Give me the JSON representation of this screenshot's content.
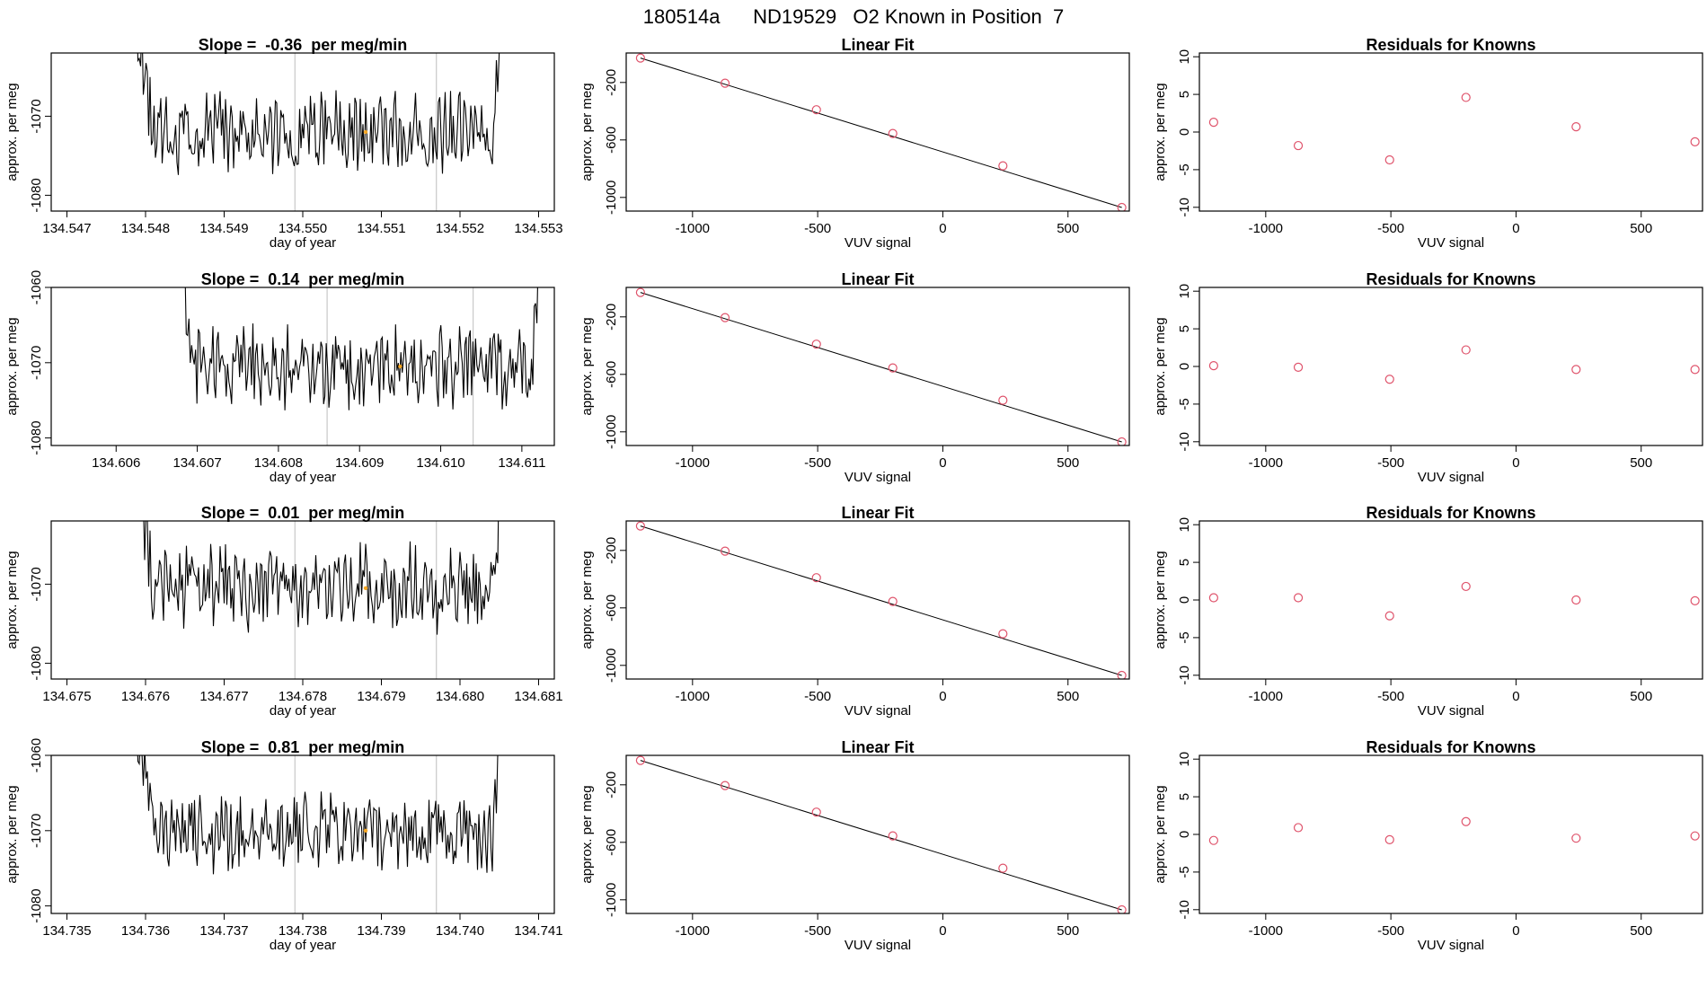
{
  "page_title": "180514a      ND19529   O2 Known in Position  7",
  "colors": {
    "trace": "#000000",
    "known_marker": "#DF536B",
    "highlight": "#F5A623",
    "grid_line": "#BEBEBE",
    "fit_line": "#000000"
  },
  "chart_data": [
    {
      "type": "line",
      "panel": "time-series",
      "row": 1,
      "title": "Slope =  -0.36  per meg/min",
      "xlabel": "day of year",
      "ylabel": "approx. per meg",
      "xlim": [
        134.5468,
        134.5532
      ],
      "ylim": [
        -1082,
        -1062
      ],
      "xticks": [
        134.547,
        134.548,
        134.549,
        134.55,
        134.551,
        134.552,
        134.553
      ],
      "xtick_labels": [
        "134.547",
        "134.548",
        "134.549",
        "134.550",
        "134.551",
        "134.552",
        "134.553"
      ],
      "yticks": [
        -1080,
        -1070
      ],
      "ytick_labels": [
        "-1080",
        "-1070"
      ],
      "x_start": 134.5478,
      "x_end": 134.5526,
      "vlines": [
        134.5499,
        134.5517
      ],
      "highlight": [
        134.5508,
        -1072
      ],
      "seed": 11
    },
    {
      "type": "line",
      "panel": "time-series",
      "row": 2,
      "title": "Slope =  0.14  per meg/min",
      "xlabel": "day of year",
      "ylabel": "approx. per meg",
      "xlim": [
        134.6052,
        134.6114
      ],
      "ylim": [
        -1081,
        -1060
      ],
      "xticks": [
        134.606,
        134.607,
        134.608,
        134.609,
        134.61,
        134.611
      ],
      "xtick_labels": [
        "134.606",
        "134.607",
        "134.608",
        "134.609",
        "134.610",
        "134.611"
      ],
      "yticks": [
        -1080,
        -1070,
        -1060
      ],
      "ytick_labels": [
        "-1080",
        "-1070",
        "-1060"
      ],
      "x_start": 134.6067,
      "x_end": 134.6113,
      "vlines": [
        134.6086,
        134.6104
      ],
      "highlight": [
        134.6095,
        -1070.5
      ],
      "seed": 23
    },
    {
      "type": "line",
      "panel": "time-series",
      "row": 3,
      "title": "Slope =  0.01  per meg/min",
      "xlabel": "day of year",
      "ylabel": "approx. per meg",
      "xlim": [
        134.6748,
        134.6812
      ],
      "ylim": [
        -1082,
        -1062
      ],
      "xticks": [
        134.675,
        134.676,
        134.677,
        134.678,
        134.679,
        134.68,
        134.681
      ],
      "xtick_labels": [
        "134.675",
        "134.676",
        "134.677",
        "134.678",
        "134.679",
        "134.680",
        "134.681"
      ],
      "yticks": [
        -1080,
        -1070
      ],
      "ytick_labels": [
        "-1080",
        "-1070"
      ],
      "x_start": 134.6758,
      "x_end": 134.6806,
      "vlines": [
        134.6779,
        134.6797
      ],
      "highlight": [
        134.6788,
        -1070.5
      ],
      "seed": 37
    },
    {
      "type": "line",
      "panel": "time-series",
      "row": 4,
      "title": "Slope =  0.81  per meg/min",
      "xlabel": "day of year",
      "ylabel": "approx. per meg",
      "xlim": [
        134.7348,
        134.7412
      ],
      "ylim": [
        -1081,
        -1060
      ],
      "xticks": [
        134.735,
        134.736,
        134.737,
        134.738,
        134.739,
        134.74,
        134.741
      ],
      "xtick_labels": [
        "134.735",
        "134.736",
        "134.737",
        "134.738",
        "134.739",
        "134.740",
        "134.741"
      ],
      "yticks": [
        -1080,
        -1070,
        -1060
      ],
      "ytick_labels": [
        "-1080",
        "-1070",
        "-1060"
      ],
      "x_start": 134.7358,
      "x_end": 134.7406,
      "vlines": [
        134.7379,
        134.7397
      ],
      "highlight": [
        134.7388,
        -1070
      ],
      "seed": 53
    },
    {
      "type": "scatter",
      "panel": "linear-fit",
      "row": 1,
      "title": "Linear Fit",
      "xlabel": "VUV signal",
      "ylabel": "approx. per meg",
      "xlim": [
        -1265,
        745
      ],
      "ylim": [
        -1095,
        5
      ],
      "xticks": [
        -1000,
        -500,
        0,
        500
      ],
      "xtick_labels": [
        "-1000",
        "-500",
        "0",
        "500"
      ],
      "yticks": [
        -200,
        -600,
        -1000
      ],
      "ytick_labels": [
        "-200",
        "-600",
        "-1000"
      ],
      "x": [
        -1208,
        -870,
        -505,
        -200,
        240,
        715
      ],
      "y": [
        -30,
        -205,
        -390,
        -555,
        -780,
        -1070
      ],
      "fit": [
        [
          -1208,
          -30
        ],
        [
          715,
          -1070
        ]
      ]
    },
    {
      "type": "scatter",
      "panel": "linear-fit",
      "row": 2,
      "title": "Linear Fit",
      "xlabel": "VUV signal",
      "ylabel": "approx. per meg",
      "xlim": [
        -1265,
        745
      ],
      "ylim": [
        -1095,
        5
      ],
      "xticks": [
        -1000,
        -500,
        0,
        500
      ],
      "xtick_labels": [
        "-1000",
        "-500",
        "0",
        "500"
      ],
      "yticks": [
        -200,
        -600,
        -1000
      ],
      "ytick_labels": [
        "-200",
        "-600",
        "-1000"
      ],
      "x": [
        -1208,
        -870,
        -505,
        -200,
        240,
        715
      ],
      "y": [
        -30,
        -205,
        -390,
        -555,
        -780,
        -1070
      ],
      "fit": [
        [
          -1208,
          -30
        ],
        [
          715,
          -1070
        ]
      ]
    },
    {
      "type": "scatter",
      "panel": "linear-fit",
      "row": 3,
      "title": "Linear Fit",
      "xlabel": "VUV signal",
      "ylabel": "approx. per meg",
      "xlim": [
        -1265,
        745
      ],
      "ylim": [
        -1095,
        5
      ],
      "xticks": [
        -1000,
        -500,
        0,
        500
      ],
      "xtick_labels": [
        "-1000",
        "-500",
        "0",
        "500"
      ],
      "yticks": [
        -200,
        -600,
        -1000
      ],
      "ytick_labels": [
        "-200",
        "-600",
        "-1000"
      ],
      "x": [
        -1208,
        -870,
        -505,
        -200,
        240,
        715
      ],
      "y": [
        -30,
        -205,
        -390,
        -555,
        -780,
        -1070
      ],
      "fit": [
        [
          -1208,
          -30
        ],
        [
          715,
          -1070
        ]
      ]
    },
    {
      "type": "scatter",
      "panel": "linear-fit",
      "row": 4,
      "title": "Linear Fit",
      "xlabel": "VUV signal",
      "ylabel": "approx. per meg",
      "xlim": [
        -1265,
        745
      ],
      "ylim": [
        -1095,
        5
      ],
      "xticks": [
        -1000,
        -500,
        0,
        500
      ],
      "xtick_labels": [
        "-1000",
        "-500",
        "0",
        "500"
      ],
      "yticks": [
        -200,
        -600,
        -1000
      ],
      "ytick_labels": [
        "-200",
        "-600",
        "-1000"
      ],
      "x": [
        -1208,
        -870,
        -505,
        -200,
        240,
        715
      ],
      "y": [
        -30,
        -205,
        -390,
        -555,
        -780,
        -1070
      ],
      "fit": [
        [
          -1208,
          -30
        ],
        [
          715,
          -1070
        ]
      ]
    },
    {
      "type": "scatter",
      "panel": "residuals",
      "row": 1,
      "title": "Residuals for Knowns",
      "xlabel": "VUV signal",
      "ylabel": "approx. per meg",
      "xlim": [
        -1265,
        745
      ],
      "ylim": [
        -10.5,
        10.5
      ],
      "xticks": [
        -1000,
        -500,
        0,
        500
      ],
      "xtick_labels": [
        "-1000",
        "-500",
        "0",
        "500"
      ],
      "yticks": [
        10,
        5,
        0,
        -5,
        -10
      ],
      "ytick_labels": [
        "10",
        "5",
        "0",
        "-5",
        "-10"
      ],
      "x": [
        -1208,
        -870,
        -505,
        -200,
        240,
        715
      ],
      "y": [
        1.3,
        -1.8,
        -3.7,
        4.6,
        0.7,
        -1.3
      ]
    },
    {
      "type": "scatter",
      "panel": "residuals",
      "row": 2,
      "title": "Residuals for Knowns",
      "xlabel": "VUV signal",
      "ylabel": "approx. per meg",
      "xlim": [
        -1265,
        745
      ],
      "ylim": [
        -10.5,
        10.5
      ],
      "xticks": [
        -1000,
        -500,
        0,
        500
      ],
      "xtick_labels": [
        "-1000",
        "-500",
        "0",
        "500"
      ],
      "yticks": [
        10,
        5,
        0,
        -5,
        -10
      ],
      "ytick_labels": [
        "10",
        "5",
        "0",
        "-5",
        "-10"
      ],
      "x": [
        -1208,
        -870,
        -505,
        -200,
        240,
        715
      ],
      "y": [
        0.1,
        -0.1,
        -1.7,
        2.2,
        -0.4,
        -0.4
      ]
    },
    {
      "type": "scatter",
      "panel": "residuals",
      "row": 3,
      "title": "Residuals for Knowns",
      "xlabel": "VUV signal",
      "ylabel": "approx. per meg",
      "xlim": [
        -1265,
        745
      ],
      "ylim": [
        -10.5,
        10.5
      ],
      "xticks": [
        -1000,
        -500,
        0,
        500
      ],
      "xtick_labels": [
        "-1000",
        "-500",
        "0",
        "500"
      ],
      "yticks": [
        10,
        5,
        0,
        -5,
        -10
      ],
      "ytick_labels": [
        "10",
        "5",
        "0",
        "-5",
        "-10"
      ],
      "x": [
        -1208,
        -870,
        -505,
        -200,
        240,
        715
      ],
      "y": [
        0.3,
        0.3,
        -2.1,
        1.8,
        0.0,
        -0.1
      ]
    },
    {
      "type": "scatter",
      "panel": "residuals",
      "row": 4,
      "title": "Residuals for Knowns",
      "xlabel": "VUV signal",
      "ylabel": "approx. per meg",
      "xlim": [
        -1265,
        745
      ],
      "ylim": [
        -10.5,
        10.5
      ],
      "xticks": [
        -1000,
        -500,
        0,
        500
      ],
      "xtick_labels": [
        "-1000",
        "-500",
        "0",
        "500"
      ],
      "yticks": [
        10,
        5,
        0,
        -5,
        -10
      ],
      "ytick_labels": [
        "10",
        "5",
        "0",
        "-5",
        "-10"
      ],
      "x": [
        -1208,
        -870,
        -505,
        -200,
        240,
        715
      ],
      "y": [
        -0.8,
        0.9,
        -0.7,
        1.7,
        -0.5,
        -0.2
      ]
    }
  ]
}
